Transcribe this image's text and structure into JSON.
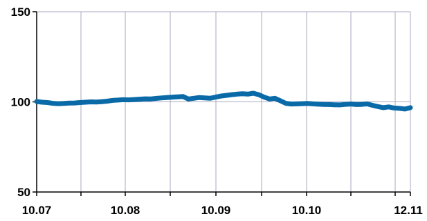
{
  "chart_data": {
    "type": "line",
    "title": "",
    "xlabel": "",
    "ylabel": "",
    "ylim": [
      50,
      150
    ],
    "yticks": [
      50,
      100,
      150
    ],
    "xtick_labels": [
      "10.07",
      "10.08",
      "10.09",
      "10.10",
      "12.11"
    ],
    "grid": true,
    "legend": "none",
    "colors": {
      "series": "#0a6aa8",
      "grid": "#a7a7c0",
      "axis": "#000000"
    },
    "series": [
      {
        "values": [
          100.2,
          99.8,
          99.6,
          99.2,
          99.0,
          99.1,
          99.3,
          99.4,
          99.6,
          99.8,
          100.0,
          99.9,
          100.1,
          100.4,
          100.8,
          101.0,
          101.2,
          101.1,
          101.3,
          101.5,
          101.7,
          101.6,
          101.9,
          102.2,
          102.4,
          102.6,
          102.8,
          103.0,
          101.6,
          102.0,
          102.4,
          102.2,
          102.0,
          102.6,
          103.2,
          103.6,
          104.0,
          104.3,
          104.5,
          104.3,
          104.8,
          104.0,
          102.6,
          101.6,
          102.0,
          100.6,
          99.2,
          98.8,
          98.9,
          99.0,
          99.1,
          98.9,
          98.7,
          98.6,
          98.5,
          98.4,
          98.3,
          98.6,
          98.8,
          98.5,
          98.6,
          98.9,
          98.1,
          97.4,
          96.8,
          97.2,
          96.6,
          96.4,
          96.0,
          96.8
        ]
      }
    ]
  }
}
